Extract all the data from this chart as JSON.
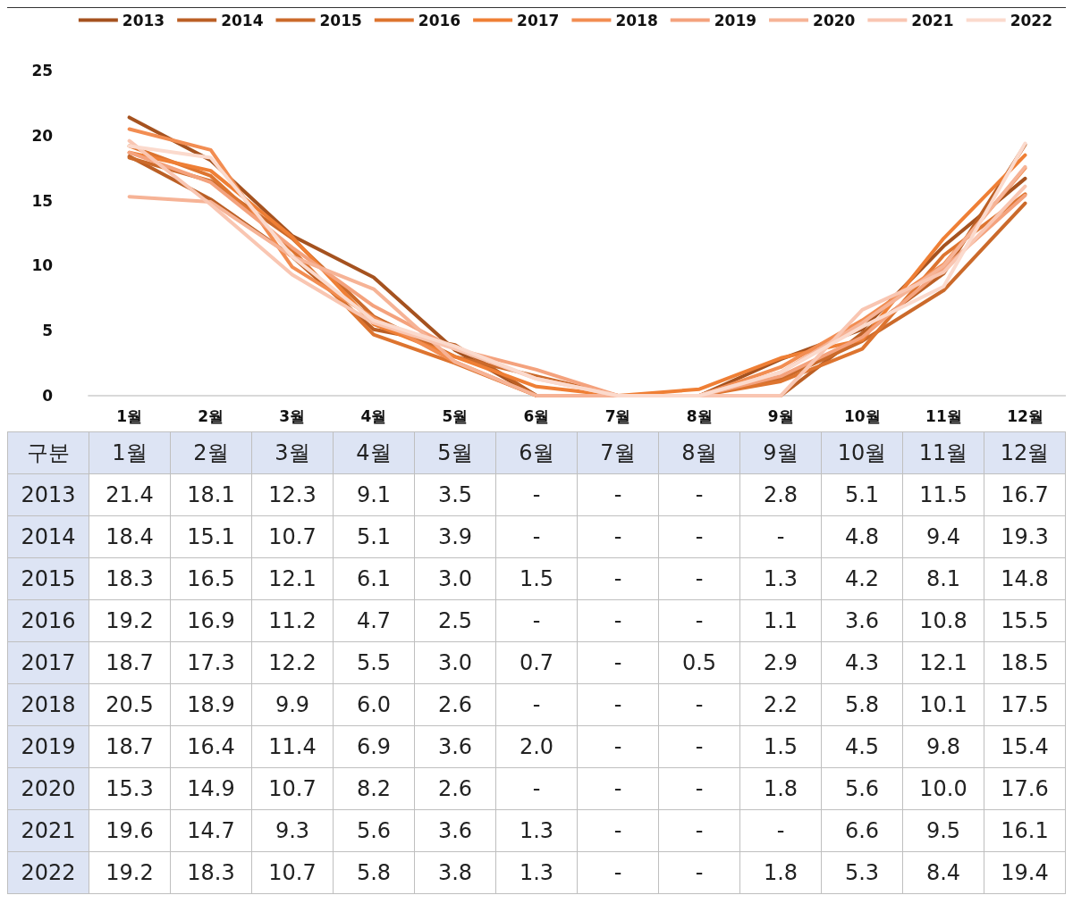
{
  "chart_data": {
    "type": "line",
    "categories": [
      "1월",
      "2월",
      "3월",
      "4월",
      "5월",
      "6월",
      "7월",
      "8월",
      "9월",
      "10월",
      "11월",
      "12월"
    ],
    "ylim": [
      0,
      25
    ],
    "yticks": [
      0,
      5,
      10,
      15,
      20,
      25
    ],
    "grid": false,
    "legend": "top",
    "marker": "none",
    "line_style": "solid",
    "annotations": [
      "구분"
    ],
    "series": [
      {
        "name": "2013",
        "color": "#a5521f",
        "values": [
          21.4,
          18.1,
          12.3,
          9.1,
          3.5,
          0,
          0,
          0,
          2.8,
          5.1,
          11.5,
          16.7
        ],
        "value_labels": [
          "21.4",
          "18.1",
          "12.3",
          "9.1",
          "3.5",
          "-",
          "-",
          "-",
          "2.8",
          "5.1",
          "11.5",
          "16.7"
        ]
      },
      {
        "name": "2014",
        "color": "#bb5f25",
        "values": [
          18.4,
          15.1,
          10.7,
          5.1,
          3.9,
          0,
          0,
          0,
          0,
          4.8,
          9.4,
          19.3
        ],
        "value_labels": [
          "18.4",
          "15.1",
          "10.7",
          "5.1",
          "3.9",
          "-",
          "-",
          "-",
          "-",
          "4.8",
          "9.4",
          "19.3"
        ]
      },
      {
        "name": "2015",
        "color": "#cb6a2b",
        "values": [
          18.3,
          16.5,
          12.1,
          6.1,
          3.0,
          1.5,
          0,
          0,
          1.3,
          4.2,
          8.1,
          14.8
        ],
        "value_labels": [
          "18.3",
          "16.5",
          "12.1",
          "6.1",
          "3.0",
          "1.5",
          "-",
          "-",
          "1.3",
          "4.2",
          "8.1",
          "14.8"
        ]
      },
      {
        "name": "2016",
        "color": "#dd742f",
        "values": [
          19.2,
          16.9,
          11.2,
          4.7,
          2.5,
          0,
          0,
          0,
          1.1,
          3.6,
          10.8,
          15.5
        ],
        "value_labels": [
          "19.2",
          "16.9",
          "11.2",
          "4.7",
          "2.5",
          "-",
          "-",
          "-",
          "1.1",
          "3.6",
          "10.8",
          "15.5"
        ]
      },
      {
        "name": "2017",
        "color": "#ef7f35",
        "values": [
          18.7,
          17.3,
          12.2,
          5.5,
          3.0,
          0.7,
          0,
          0.5,
          2.9,
          4.3,
          12.1,
          18.5
        ],
        "value_labels": [
          "18.7",
          "17.3",
          "12.2",
          "5.5",
          "3.0",
          "0.7",
          "-",
          "0.5",
          "2.9",
          "4.3",
          "12.1",
          "18.5"
        ]
      },
      {
        "name": "2018",
        "color": "#f28d52",
        "values": [
          20.5,
          18.9,
          9.9,
          6.0,
          2.6,
          0,
          0,
          0,
          2.2,
          5.8,
          10.1,
          17.5
        ],
        "value_labels": [
          "20.5",
          "18.9",
          "9.9",
          "6.0",
          "2.6",
          "-",
          "-",
          "-",
          "2.2",
          "5.8",
          "10.1",
          "17.5"
        ]
      },
      {
        "name": "2019",
        "color": "#f4a27d",
        "values": [
          18.7,
          16.4,
          11.4,
          6.9,
          3.6,
          2.0,
          0,
          0,
          1.5,
          4.5,
          9.8,
          15.4
        ],
        "value_labels": [
          "18.7",
          "16.4",
          "11.4",
          "6.9",
          "3.6",
          "2.0",
          "-",
          "-",
          "1.5",
          "4.5",
          "9.8",
          "15.4"
        ]
      },
      {
        "name": "2020",
        "color": "#f6b396",
        "values": [
          15.3,
          14.9,
          10.7,
          8.2,
          2.6,
          0,
          0,
          0,
          1.8,
          5.6,
          10.0,
          17.6
        ],
        "value_labels": [
          "15.3",
          "14.9",
          "10.7",
          "8.2",
          "2.6",
          "-",
          "-",
          "-",
          "1.8",
          "5.6",
          "10.0",
          "17.6"
        ]
      },
      {
        "name": "2021",
        "color": "#f9c6b2",
        "values": [
          19.6,
          14.7,
          9.3,
          5.6,
          3.6,
          1.3,
          0,
          0,
          0,
          6.6,
          9.5,
          16.1
        ],
        "value_labels": [
          "19.6",
          "14.7",
          "9.3",
          "5.6",
          "3.6",
          "1.3",
          "-",
          "-",
          "-",
          "6.6",
          "9.5",
          "16.1"
        ]
      },
      {
        "name": "2022",
        "color": "#fbdacd",
        "values": [
          19.2,
          18.3,
          10.7,
          5.8,
          3.8,
          1.3,
          0,
          0,
          1.8,
          5.3,
          8.4,
          19.4
        ],
        "value_labels": [
          "19.2",
          "18.3",
          "10.7",
          "5.8",
          "3.8",
          "1.3",
          "-",
          "-",
          "1.8",
          "5.3",
          "8.4",
          "19.4"
        ]
      }
    ]
  }
}
